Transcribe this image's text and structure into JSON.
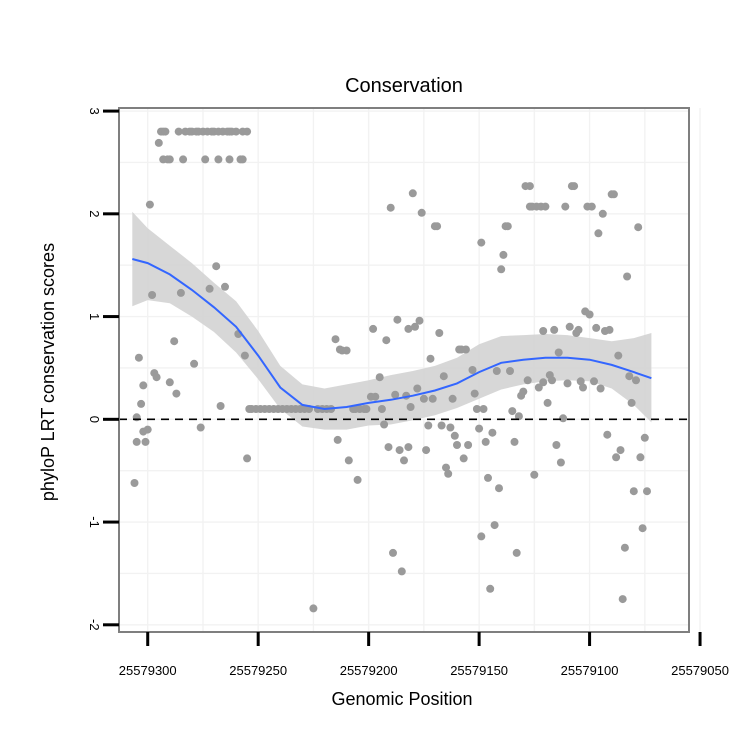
{
  "chart_data": {
    "type": "scatter",
    "title": "Conservation",
    "xlabel": "Genomic Position",
    "ylabel": "phyloP LRT conservation scores",
    "x_reversed": true,
    "xlim": [
      25579055,
      25579313
    ],
    "ylim": [
      -2.07,
      3.03
    ],
    "x_ticks": [
      25579300,
      25579250,
      25579200,
      25579150,
      25579100,
      25579050
    ],
    "x_tick_labels": [
      "25579300",
      "25579250",
      "25579200",
      "25579150",
      "25579100",
      "25579050"
    ],
    "y_ticks": [
      -2,
      -1,
      0,
      1,
      2,
      3
    ],
    "y_tick_labels": [
      "-2",
      "-1",
      "0",
      "1",
      "2",
      "3"
    ],
    "reference_line": {
      "y": 0,
      "style": "dashed"
    },
    "grid": true,
    "colors": {
      "points": "#9a9a9a",
      "smooth": "#3366ff",
      "ribbon": "#d3d3d3",
      "frame": "#7f7f7f",
      "grid": "#f2f2f2"
    },
    "points": [
      [
        25579306,
        -0.62
      ],
      [
        25579305,
        0.02
      ],
      [
        25579305,
        -0.22
      ],
      [
        25579304,
        0.6
      ],
      [
        25579303,
        0.15
      ],
      [
        25579302,
        -0.12
      ],
      [
        25579302,
        0.33
      ],
      [
        25579301,
        -0.22
      ],
      [
        25579300,
        -0.1
      ],
      [
        25579299,
        2.09
      ],
      [
        25579298,
        1.21
      ],
      [
        25579297,
        0.45
      ],
      [
        25579296,
        0.41
      ],
      [
        25579295,
        2.69
      ],
      [
        25579294,
        2.8
      ],
      [
        25579293,
        2.8
      ],
      [
        25579293,
        2.53
      ],
      [
        25579292,
        2.8
      ],
      [
        25579291,
        2.53
      ],
      [
        25579290,
        0.36
      ],
      [
        25579290,
        2.53
      ],
      [
        25579288,
        0.76
      ],
      [
        25579287,
        0.25
      ],
      [
        25579286,
        2.8
      ],
      [
        25579285,
        1.23
      ],
      [
        25579284,
        2.53
      ],
      [
        25579283,
        2.8
      ],
      [
        25579281,
        2.8
      ],
      [
        25579280,
        2.8
      ],
      [
        25579279,
        0.54
      ],
      [
        25579278,
        2.8
      ],
      [
        25579277,
        2.8
      ],
      [
        25579276,
        -0.08
      ],
      [
        25579275,
        2.8
      ],
      [
        25579274,
        2.53
      ],
      [
        25579273,
        2.8
      ],
      [
        25579272,
        1.27
      ],
      [
        25579271,
        2.8
      ],
      [
        25579270,
        2.8
      ],
      [
        25579269,
        1.49
      ],
      [
        25579268,
        2.8
      ],
      [
        25579268,
        2.53
      ],
      [
        25579267,
        0.13
      ],
      [
        25579266,
        2.8
      ],
      [
        25579265,
        1.29
      ],
      [
        25579264,
        2.8
      ],
      [
        25579263,
        2.53
      ],
      [
        25579263,
        2.8
      ],
      [
        25579262,
        2.8
      ],
      [
        25579260,
        2.8
      ],
      [
        25579259,
        0.83
      ],
      [
        25579258,
        2.53
      ],
      [
        25579257,
        2.8
      ],
      [
        25579257,
        2.53
      ],
      [
        25579256,
        0.62
      ],
      [
        25579255,
        2.8
      ],
      [
        25579255,
        -0.38
      ],
      [
        25579254,
        0.1
      ],
      [
        25579253,
        0.1
      ],
      [
        25579251,
        0.1
      ],
      [
        25579249,
        0.1
      ],
      [
        25579247,
        0.1
      ],
      [
        25579245,
        0.1
      ],
      [
        25579243,
        0.1
      ],
      [
        25579241,
        0.1
      ],
      [
        25579239,
        0.1
      ],
      [
        25579237,
        0.1
      ],
      [
        25579235,
        0.1
      ],
      [
        25579233,
        0.1
      ],
      [
        25579231,
        0.1
      ],
      [
        25579229,
        0.1
      ],
      [
        25579227,
        0.1
      ],
      [
        25579225,
        -1.84
      ],
      [
        25579223,
        0.1
      ],
      [
        25579221,
        0.1
      ],
      [
        25579219,
        0.1
      ],
      [
        25579217,
        0.1
      ],
      [
        25579215,
        0.78
      ],
      [
        25579214,
        -0.2
      ],
      [
        25579213,
        0.68
      ],
      [
        25579212,
        0.67
      ],
      [
        25579210,
        0.67
      ],
      [
        25579209,
        -0.4
      ],
      [
        25579207,
        0.1
      ],
      [
        25579206,
        0.1
      ],
      [
        25579205,
        -0.59
      ],
      [
        25579204,
        0.1
      ],
      [
        25579202,
        0.1
      ],
      [
        25579201,
        0.1
      ],
      [
        25579199,
        0.22
      ],
      [
        25579198,
        0.88
      ],
      [
        25579197,
        0.22
      ],
      [
        25579195,
        0.41
      ],
      [
        25579194,
        0.1
      ],
      [
        25579193,
        -0.05
      ],
      [
        25579192,
        0.77
      ],
      [
        25579191,
        -0.27
      ],
      [
        25579190,
        2.06
      ],
      [
        25579189,
        -1.3
      ],
      [
        25579188,
        0.24
      ],
      [
        25579187,
        0.97
      ],
      [
        25579186,
        -0.3
      ],
      [
        25579185,
        -1.48
      ],
      [
        25579184,
        -0.4
      ],
      [
        25579183,
        0.23
      ],
      [
        25579182,
        0.88
      ],
      [
        25579182,
        -0.27
      ],
      [
        25579181,
        0.12
      ],
      [
        25579180,
        2.2
      ],
      [
        25579179,
        0.9
      ],
      [
        25579178,
        0.3
      ],
      [
        25579177,
        0.96
      ],
      [
        25579176,
        2.01
      ],
      [
        25579175,
        0.2
      ],
      [
        25579174,
        -0.3
      ],
      [
        25579173,
        -0.06
      ],
      [
        25579172,
        0.59
      ],
      [
        25579171,
        0.2
      ],
      [
        25579170,
        1.88
      ],
      [
        25579169,
        1.88
      ],
      [
        25579168,
        0.84
      ],
      [
        25579167,
        -0.06
      ],
      [
        25579166,
        0.42
      ],
      [
        25579165,
        -0.47
      ],
      [
        25579164,
        -0.53
      ],
      [
        25579163,
        -0.08
      ],
      [
        25579162,
        0.2
      ],
      [
        25579161,
        -0.16
      ],
      [
        25579160,
        -0.25
      ],
      [
        25579159,
        0.68
      ],
      [
        25579158,
        0.68
      ],
      [
        25579157,
        -0.38
      ],
      [
        25579156,
        0.68
      ],
      [
        25579155,
        -0.25
      ],
      [
        25579153,
        0.48
      ],
      [
        25579152,
        0.25
      ],
      [
        25579151,
        0.1
      ],
      [
        25579150,
        -0.09
      ],
      [
        25579149,
        1.72
      ],
      [
        25579149,
        -1.14
      ],
      [
        25579148,
        0.1
      ],
      [
        25579147,
        -0.22
      ],
      [
        25579146,
        -0.57
      ],
      [
        25579145,
        -1.65
      ],
      [
        25579144,
        -0.13
      ],
      [
        25579143,
        -1.03
      ],
      [
        25579142,
        0.47
      ],
      [
        25579141,
        -0.67
      ],
      [
        25579140,
        1.46
      ],
      [
        25579139,
        1.6
      ],
      [
        25579138,
        1.88
      ],
      [
        25579137,
        1.88
      ],
      [
        25579136,
        0.47
      ],
      [
        25579135,
        0.08
      ],
      [
        25579134,
        -0.22
      ],
      [
        25579133,
        -1.3
      ],
      [
        25579132,
        0.03
      ],
      [
        25579131,
        0.23
      ],
      [
        25579130,
        0.27
      ],
      [
        25579129,
        2.27
      ],
      [
        25579128,
        0.38
      ],
      [
        25579127,
        2.27
      ],
      [
        25579127,
        2.07
      ],
      [
        25579126,
        2.07
      ],
      [
        25579125,
        -0.54
      ],
      [
        25579124,
        2.07
      ],
      [
        25579123,
        0.31
      ],
      [
        25579122,
        2.07
      ],
      [
        25579121,
        0.36
      ],
      [
        25579121,
        0.86
      ],
      [
        25579120,
        2.07
      ],
      [
        25579119,
        0.16
      ],
      [
        25579118,
        0.43
      ],
      [
        25579117,
        0.38
      ],
      [
        25579116,
        0.87
      ],
      [
        25579115,
        -0.25
      ],
      [
        25579114,
        0.65
      ],
      [
        25579113,
        -0.42
      ],
      [
        25579112,
        0.01
      ],
      [
        25579111,
        2.07
      ],
      [
        25579110,
        0.35
      ],
      [
        25579109,
        0.9
      ],
      [
        25579108,
        2.27
      ],
      [
        25579107,
        2.27
      ],
      [
        25579106,
        0.84
      ],
      [
        25579105,
        0.87
      ],
      [
        25579104,
        0.37
      ],
      [
        25579103,
        0.31
      ],
      [
        25579102,
        1.05
      ],
      [
        25579101,
        2.07
      ],
      [
        25579100,
        1.02
      ],
      [
        25579099,
        2.07
      ],
      [
        25579098,
        0.37
      ],
      [
        25579097,
        0.89
      ],
      [
        25579096,
        1.81
      ],
      [
        25579095,
        0.3
      ],
      [
        25579094,
        2.0
      ],
      [
        25579093,
        0.86
      ],
      [
        25579092,
        -0.15
      ],
      [
        25579091,
        0.87
      ],
      [
        25579090,
        2.19
      ],
      [
        25579089,
        2.19
      ],
      [
        25579088,
        -0.37
      ],
      [
        25579087,
        0.62
      ],
      [
        25579086,
        -0.3
      ],
      [
        25579085,
        -1.75
      ],
      [
        25579084,
        -1.25
      ],
      [
        25579083,
        1.39
      ],
      [
        25579082,
        0.42
      ],
      [
        25579081,
        0.16
      ],
      [
        25579080,
        -0.7
      ],
      [
        25579079,
        0.38
      ],
      [
        25579078,
        1.87
      ],
      [
        25579077,
        -0.37
      ],
      [
        25579076,
        -1.06
      ],
      [
        25579075,
        -0.18
      ],
      [
        25579074,
        -0.7
      ]
    ],
    "smooth": [
      [
        25579307,
        1.56
      ],
      [
        25579300,
        1.52
      ],
      [
        25579290,
        1.41
      ],
      [
        25579280,
        1.26
      ],
      [
        25579270,
        1.09
      ],
      [
        25579260,
        0.9
      ],
      [
        25579250,
        0.62
      ],
      [
        25579240,
        0.31
      ],
      [
        25579230,
        0.14
      ],
      [
        25579220,
        0.1
      ],
      [
        25579210,
        0.12
      ],
      [
        25579200,
        0.16
      ],
      [
        25579190,
        0.19
      ],
      [
        25579180,
        0.23
      ],
      [
        25579170,
        0.28
      ],
      [
        25579160,
        0.35
      ],
      [
        25579150,
        0.46
      ],
      [
        25579140,
        0.55
      ],
      [
        25579130,
        0.58
      ],
      [
        25579120,
        0.6
      ],
      [
        25579110,
        0.6
      ],
      [
        25579100,
        0.58
      ],
      [
        25579090,
        0.53
      ],
      [
        25579080,
        0.46
      ],
      [
        25579072,
        0.4
      ]
    ],
    "ribbon_upper": [
      [
        25579307,
        2.02
      ],
      [
        25579300,
        1.86
      ],
      [
        25579290,
        1.69
      ],
      [
        25579280,
        1.52
      ],
      [
        25579270,
        1.33
      ],
      [
        25579260,
        1.15
      ],
      [
        25579250,
        0.86
      ],
      [
        25579240,
        0.52
      ],
      [
        25579230,
        0.34
      ],
      [
        25579220,
        0.3
      ],
      [
        25579210,
        0.34
      ],
      [
        25579200,
        0.38
      ],
      [
        25579190,
        0.43
      ],
      [
        25579180,
        0.47
      ],
      [
        25579170,
        0.52
      ],
      [
        25579160,
        0.6
      ],
      [
        25579150,
        0.73
      ],
      [
        25579140,
        0.81
      ],
      [
        25579130,
        0.82
      ],
      [
        25579120,
        0.83
      ],
      [
        25579110,
        0.82
      ],
      [
        25579100,
        0.79
      ],
      [
        25579090,
        0.76
      ],
      [
        25579080,
        0.79
      ],
      [
        25579072,
        0.84
      ]
    ],
    "ribbon_lower": [
      [
        25579307,
        1.1
      ],
      [
        25579300,
        1.16
      ],
      [
        25579290,
        1.13
      ],
      [
        25579280,
        1.0
      ],
      [
        25579270,
        0.85
      ],
      [
        25579260,
        0.65
      ],
      [
        25579250,
        0.39
      ],
      [
        25579240,
        0.1
      ],
      [
        25579230,
        -0.07
      ],
      [
        25579220,
        -0.1
      ],
      [
        25579210,
        -0.1
      ],
      [
        25579200,
        -0.06
      ],
      [
        25579190,
        -0.05
      ],
      [
        25579180,
        -0.01
      ],
      [
        25579170,
        0.04
      ],
      [
        25579160,
        0.11
      ],
      [
        25579150,
        0.2
      ],
      [
        25579140,
        0.29
      ],
      [
        25579130,
        0.34
      ],
      [
        25579120,
        0.37
      ],
      [
        25579110,
        0.38
      ],
      [
        25579100,
        0.37
      ],
      [
        25579090,
        0.3
      ],
      [
        25579080,
        0.14
      ],
      [
        25579072,
        -0.03
      ]
    ]
  }
}
